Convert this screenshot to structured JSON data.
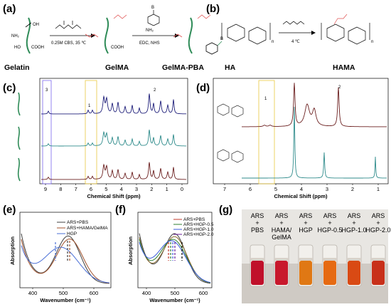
{
  "panels": {
    "a": {
      "label": "(a)",
      "reagent1_top": "",
      "conditions1": "0.25M CBS, 35 ℃",
      "reagent2_top": "",
      "conditions2": "EDC,   NHS",
      "pba_symbol": "B",
      "samples": [
        "Gelatin",
        "GelMA",
        "GelMA-PBA"
      ]
    },
    "b": {
      "label": "(b)",
      "conditions": "4 ℃",
      "samples": [
        "HA",
        "HAMA"
      ]
    },
    "c": {
      "label": "(c)",
      "xlabel": "Chemical Shift (ppm)",
      "xticks": [
        "9",
        "8",
        "7",
        "6",
        "5",
        "4",
        "3",
        "2",
        "1",
        "0"
      ],
      "peak_marks": [
        "3",
        "1",
        "2"
      ],
      "colors": [
        "#1f1f7a",
        "#2e8b8b",
        "#6b1f1f"
      ]
    },
    "d": {
      "label": "(d)",
      "xlabel": "Chemical Shift (ppm)",
      "xticks": [
        "7",
        "6",
        "5",
        "4",
        "3",
        "2",
        "1"
      ],
      "peak_marks": [
        "1",
        "2"
      ],
      "colors": [
        "#6b1f1f",
        "#2e8b8b"
      ]
    },
    "e": {
      "label": "(e)",
      "xlabel": "Wavenumber (cm⁻¹)",
      "ylabel": "Absorption",
      "xticks": [
        "400",
        "500",
        "600"
      ],
      "legend": [
        "ARS+PBS",
        "ARS+HAMA/GelMA",
        "HGP"
      ],
      "colors": [
        "#404040",
        "#a0522d",
        "#4a6fd6"
      ]
    },
    "f": {
      "label": "(f)",
      "xlabel": "Wavenumber (cm⁻¹)",
      "ylabel": "Absorption",
      "xticks": [
        "400",
        "500",
        "600"
      ],
      "legend": [
        "ARS+PBS",
        "ARS+HGP-0.5",
        "ARS+HGP-1.0",
        "ARS+HGP-2.0"
      ],
      "colors": [
        "#c0392b",
        "#2e7d32",
        "#3b5bdb",
        "#6a1b9a"
      ]
    },
    "g": {
      "label": "(g)",
      "tubes": [
        {
          "l1": "ARS",
          "l2": "+",
          "l3": "PBS",
          "color": "#c0102a"
        },
        {
          "l1": "ARS",
          "l2": "+",
          "l3": "HAMA/",
          "l4": "GelMA",
          "color": "#c8182c"
        },
        {
          "l1": "ARS",
          "l2": "+",
          "l3": "HGP",
          "color": "#e07814"
        },
        {
          "l1": "ARS",
          "l2": "+",
          "l3": "HGP-0.5",
          "color": "#e66a12"
        },
        {
          "l1": "ARS",
          "l2": "+",
          "l3": "HGP-1.0",
          "color": "#d94a14"
        },
        {
          "l1": "ARS",
          "l2": "+",
          "l3": "HGP-2.0",
          "color": "#c8301a"
        }
      ]
    }
  }
}
